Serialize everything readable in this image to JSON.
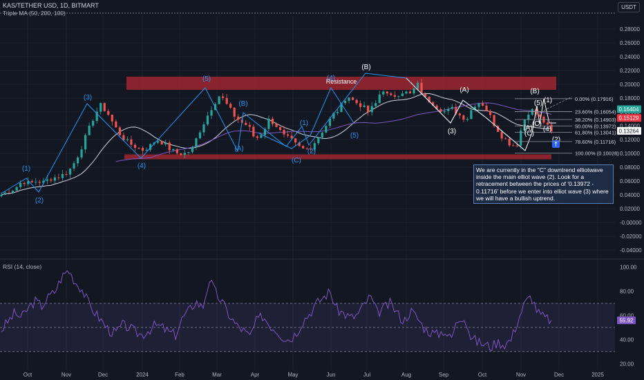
{
  "header": {
    "symbol": "KAS/TETHER USD, 1D, BITMART",
    "indicator": "Triple MA (50, 200, 100)",
    "currency_button": "USDT",
    "rsi_label": "RSI (14, close)"
  },
  "annotation_note": "We are currently in the \"C\" downtrend elliotwave inside the main elliot wave (2). Look for a retracement between the prices of '0.13972 - 0.11716' before we enter into elliot wave (3) where we will have a bullish uptrend.",
  "colors": {
    "background": "#131722",
    "bull": "#26a69a",
    "bear": "#ef5350",
    "wave_line": "#2196f3",
    "ma_50": "#d1d4dc",
    "ma_200": "#7e57c2",
    "resistance_zone": "#b22833",
    "rsi_line": "#7e57c2",
    "rsi_band": "#7e57c2"
  },
  "chart_data": {
    "type": "candlestick",
    "x_axis": {
      "ticks": [
        "Oct",
        "Nov",
        "Dec",
        "2024",
        "Feb",
        "Mar",
        "Apr",
        "May",
        "Jun",
        "Jul",
        "Aug",
        "Sep",
        "Oct",
        "Nov",
        "Dec",
        "2025"
      ]
    },
    "price_axis": {
      "ticks": [
        "0.28000",
        "0.26000",
        "0.24000",
        "0.22000",
        "0.20000",
        "0.18000",
        "0.16000",
        "0.14000",
        "0.12000",
        "0.10000",
        "0.08000",
        "0.06000",
        "0.04000",
        "0.02000",
        "-0.00000",
        "-0.02000",
        "-0.04000"
      ],
      "range": [
        -0.05,
        0.3
      ]
    },
    "price_labels": [
      {
        "text": "0.16404",
        "value": 0.16404,
        "color": "#26a69a"
      },
      {
        "text": "0.15129",
        "value": 0.15129,
        "color": "#f23645"
      },
      {
        "text": "0.13264",
        "value": 0.13264,
        "color": "#ffffff"
      }
    ],
    "resistance_label": "Resistance",
    "support_value": 0.095,
    "resistance_range": [
      0.192,
      0.211
    ],
    "fibonacci": [
      {
        "label": "0.00% (0.17916)",
        "value": 0.17916
      },
      {
        "label": "23.60% (0.16054)",
        "value": 0.16054
      },
      {
        "label": "38.20% (0.14903)",
        "value": 0.14903
      },
      {
        "label": "50.00% (0.13972)",
        "value": 0.13972
      },
      {
        "label": "61.80% (0.13041)",
        "value": 0.13041
      },
      {
        "label": "78.60% (0.11716)",
        "value": 0.11716
      },
      {
        "label": "100.00% (0.10028)",
        "value": 0.10028
      }
    ],
    "price_series_close": [
      0.04,
      0.045,
      0.05,
      0.06,
      0.056,
      0.06,
      0.058,
      0.064,
      0.066,
      0.07,
      0.08,
      0.1,
      0.125,
      0.15,
      0.17,
      0.16,
      0.14,
      0.125,
      0.115,
      0.11,
      0.105,
      0.11,
      0.12,
      0.115,
      0.105,
      0.1,
      0.1,
      0.105,
      0.13,
      0.15,
      0.17,
      0.185,
      0.17,
      0.155,
      0.145,
      0.14,
      0.12,
      0.13,
      0.15,
      0.14,
      0.125,
      0.12,
      0.11,
      0.105,
      0.11,
      0.125,
      0.14,
      0.155,
      0.165,
      0.185,
      0.175,
      0.17,
      0.16,
      0.17,
      0.195,
      0.18,
      0.185,
      0.19,
      0.185,
      0.2,
      0.18,
      0.175,
      0.165,
      0.16,
      0.165,
      0.155,
      0.15,
      0.17,
      0.175,
      0.16,
      0.14,
      0.125,
      0.115,
      0.11,
      0.145,
      0.165,
      0.155,
      0.145,
      0.13
    ],
    "waves": [
      {
        "label": "(1)",
        "color": "#2196f3",
        "value": 0.07
      },
      {
        "label": "(2)",
        "color": "#2196f3",
        "value": 0.04
      },
      {
        "label": "(3)",
        "color": "#2196f3",
        "value": 0.178
      },
      {
        "label": "(4)",
        "color": "#2196f3",
        "value": 0.093
      },
      {
        "label": "(5)",
        "color": "#2196f3",
        "value": 0.202
      },
      {
        "label": "(B)",
        "color": "#2196f3",
        "value": 0.17
      },
      {
        "label": "(A)",
        "color": "#2196f3",
        "value": 0.113
      },
      {
        "label": "(C)",
        "color": "#2196f3",
        "value": 0.093
      },
      {
        "label": "(1)",
        "color": "#2196f3",
        "value": 0.143
      },
      {
        "label": "(2)",
        "color": "#2196f3",
        "value": 0.1
      },
      {
        "label": "(4)",
        "color": "#2196f3",
        "value": 0.133
      },
      {
        "label": "(5)",
        "color": "#2196f3",
        "value": 0.226
      },
      {
        "label": "(B)",
        "color": "#ffffff",
        "value": 0.189
      },
      {
        "label": "(A)",
        "color": "#ffffff",
        "value": 0.148
      },
      {
        "label": "(3)",
        "color": "#ffffff",
        "value": 0.17
      },
      {
        "label": "(5)",
        "color": "#ffffff",
        "value": 0.193
      },
      {
        "label": "(B)",
        "color": "#ffffff",
        "value": 0.173
      },
      {
        "label": "(1)",
        "color": "#ffffff",
        "value": 0.138
      },
      {
        "label": "(A)",
        "color": "#ffffff",
        "value": 0.136
      },
      {
        "label": "(4)",
        "color": "#ffffff",
        "value": 0.118
      },
      {
        "label": "(C)",
        "color": "#ffffff",
        "value": 0.119
      },
      {
        "label": "(2)",
        "color": "#ffffff",
        "value": 0.1
      },
      {
        "label": "(C)",
        "color": "#ffffff",
        "value": 0.093
      }
    ],
    "rsi": {
      "axis_ticks": [
        "100.00",
        "80.00",
        "60.00",
        "40.00",
        "20.00"
      ],
      "range": [
        15,
        105
      ],
      "band": [
        30,
        70
      ],
      "midline": 50,
      "current_label": "55.92",
      "current_value": 55.92,
      "series": [
        48,
        55,
        62,
        58,
        66,
        72,
        68,
        75,
        80,
        92,
        98,
        88,
        82,
        70,
        62,
        55,
        48,
        45,
        52,
        50,
        46,
        44,
        48,
        52,
        50,
        46,
        44,
        58,
        64,
        72,
        66,
        90,
        78,
        70,
        60,
        52,
        48,
        42,
        55,
        60,
        52,
        48,
        42,
        40,
        46,
        56,
        62,
        70,
        75,
        80,
        65,
        62,
        58,
        60,
        68,
        76,
        62,
        66,
        70,
        62,
        55,
        64,
        58,
        50,
        46,
        44,
        48,
        40,
        56,
        60,
        42,
        38,
        36,
        34,
        38,
        36,
        40,
        56,
        70,
        76,
        62,
        58,
        55.92
      ]
    }
  }
}
